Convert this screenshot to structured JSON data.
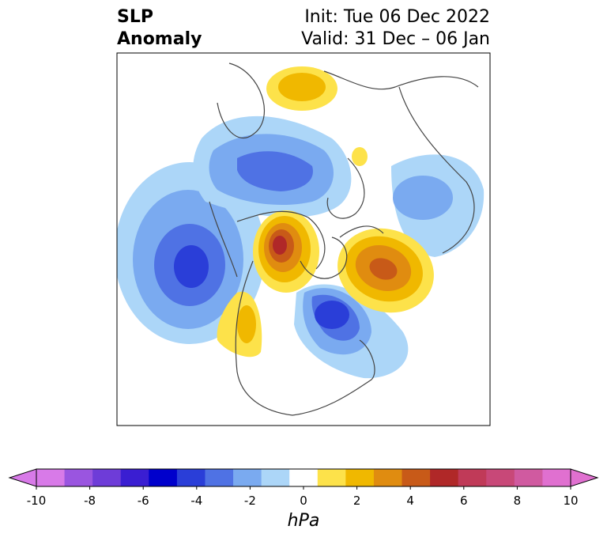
{
  "title": {
    "line1": "SLP",
    "line2": "Anomaly"
  },
  "init": {
    "line1": "Init: Tue 06 Dec 2022",
    "line2": "Valid: 31 Dec – 06 Jan"
  },
  "colorbar": {
    "label": "hPa",
    "ticks": [
      "-10",
      "-8",
      "-6",
      "-4",
      "-2",
      "0",
      "2",
      "4",
      "6",
      "8",
      "10"
    ],
    "levels": [
      -10,
      -9,
      -8,
      -7,
      -6,
      -5,
      -4,
      -3,
      -2,
      -1,
      1,
      2,
      3,
      4,
      5,
      6,
      7,
      8,
      9,
      10
    ],
    "colors": [
      "#d87ae8",
      "#9a55e0",
      "#6e3cd8",
      "#3a1ed2",
      "#0000cc",
      "#2a3ed8",
      "#4f72e4",
      "#7aaaf0",
      "#acd6f8",
      "#ffffff",
      "#fde24a",
      "#f0b800",
      "#e08c10",
      "#c85a18",
      "#b02828",
      "#c03a58",
      "#c84878",
      "#d05aa0",
      "#e070d0"
    ],
    "under_color": "#d87ae8",
    "over_color": "#e070d0"
  },
  "colors": {
    "frame": "#000000",
    "coast": "#444444"
  }
}
